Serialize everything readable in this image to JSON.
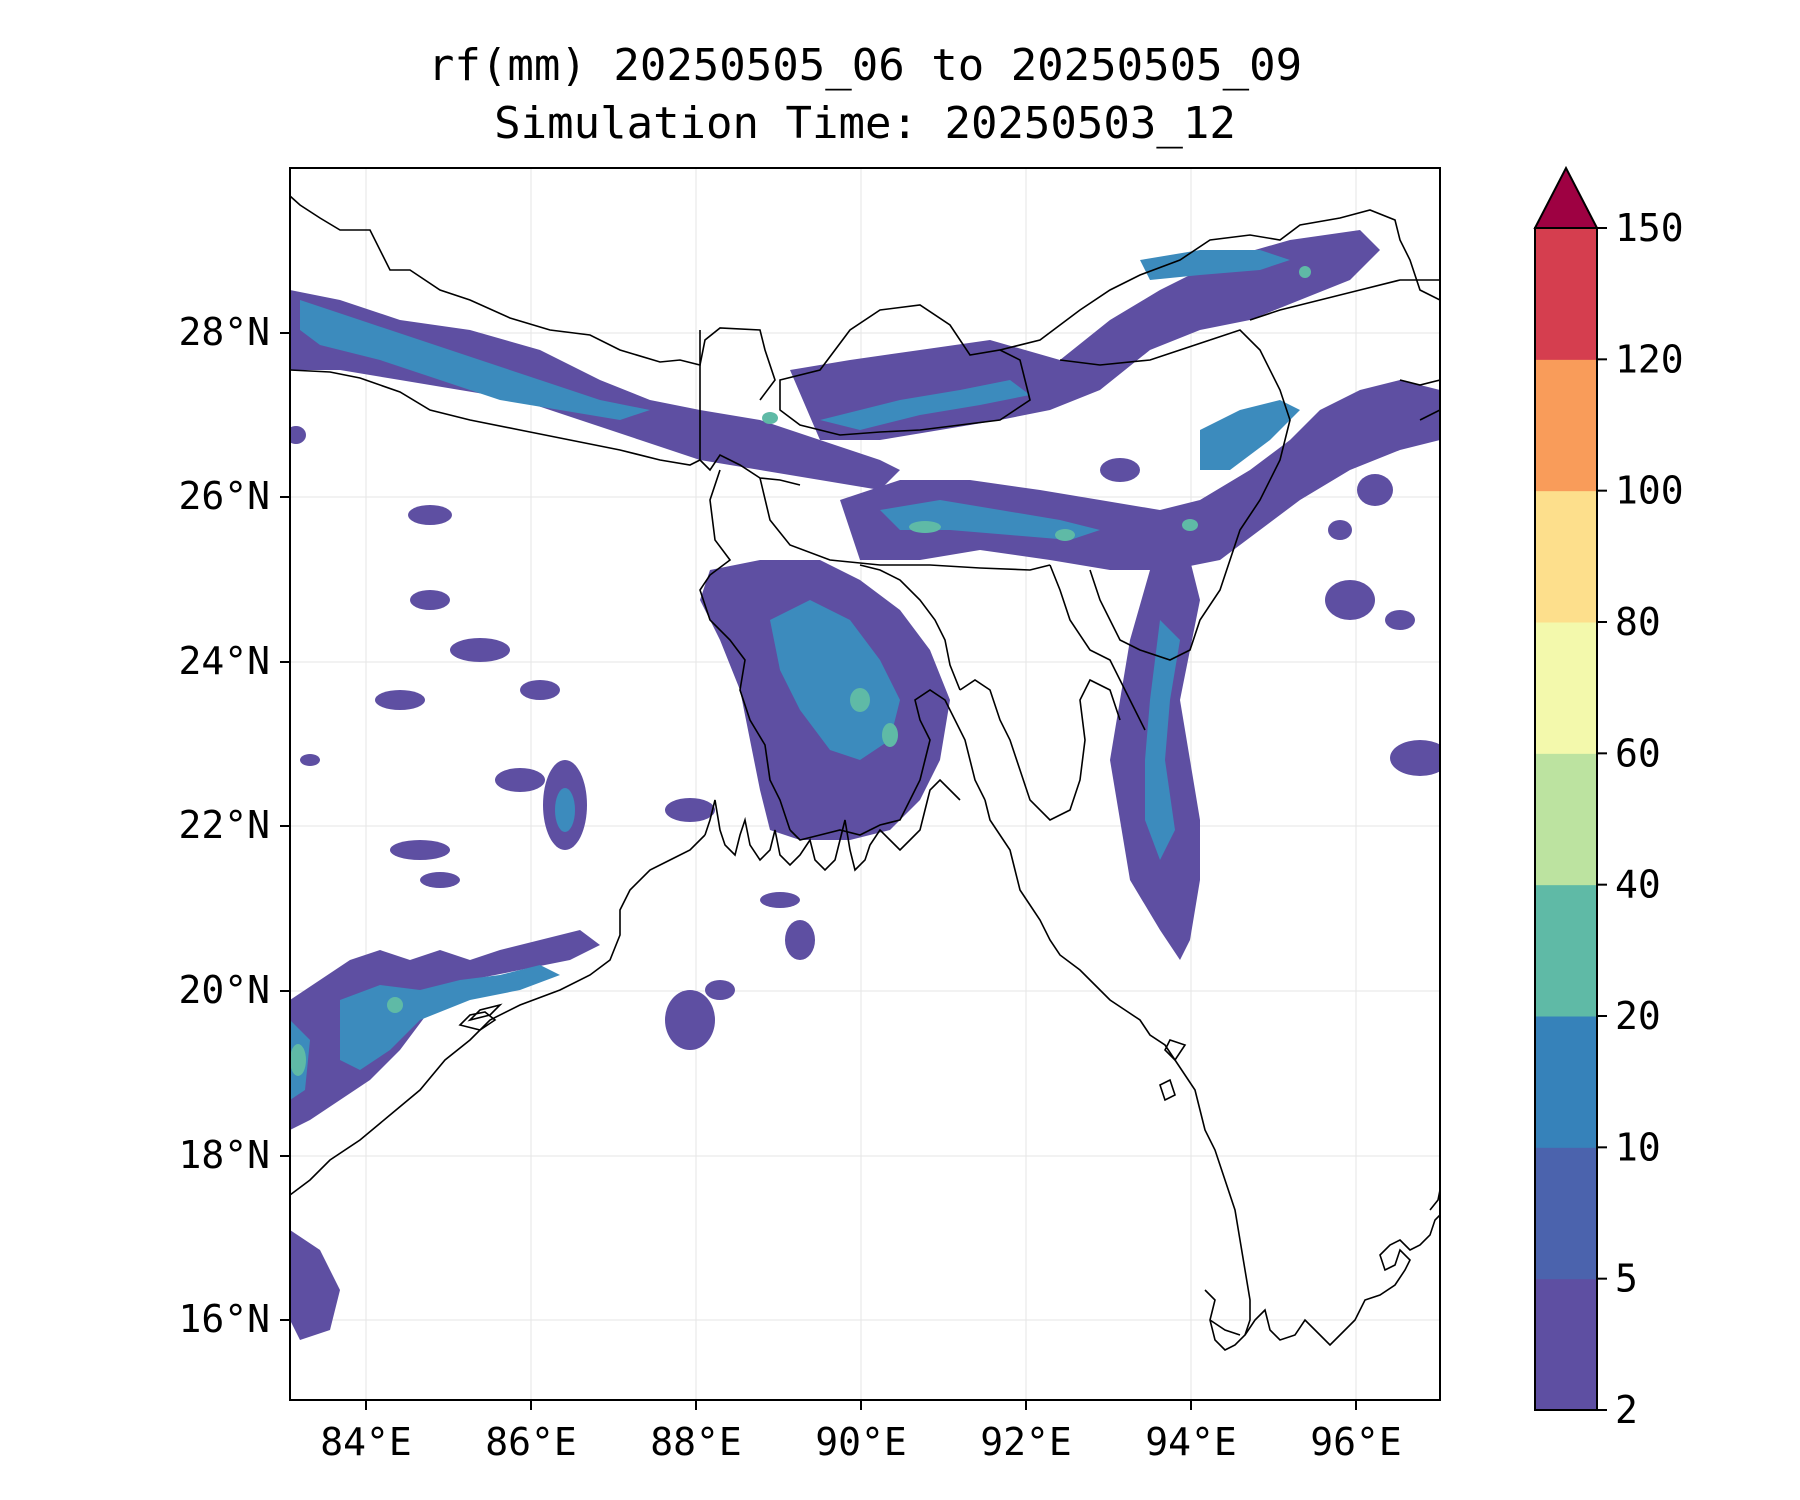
{
  "title": {
    "line1": "rf(mm) 20250505_06 to 20250505_09",
    "line2": "Simulation Time: 20250503_12"
  },
  "map": {
    "x_ticks": [
      "84°E",
      "86°E",
      "88°E",
      "90°E",
      "92°E",
      "94°E",
      "96°E"
    ],
    "y_ticks": [
      "28°N",
      "26°N",
      "24°N",
      "22°N",
      "20°N",
      "18°N",
      "16°N"
    ],
    "extent": {
      "lon": [
        83.1,
        97.0
      ],
      "lat": [
        15.0,
        30.0
      ]
    },
    "grid": true,
    "rain_colors": [
      "#5e4fa2",
      "#4b63ad",
      "#3c8bbd",
      "#5fbaa6",
      "#3c8bbd"
    ]
  },
  "colorbar": {
    "levels": [
      "2",
      "5",
      "10",
      "20",
      "40",
      "60",
      "80",
      "100",
      "120",
      "150"
    ],
    "colors": [
      "#5e4fa2",
      "#4b63ad",
      "#3682ba",
      "#5fbaa6",
      "#bce3a0",
      "#f3f9ac",
      "#fddf8c",
      "#f99c5a",
      "#d53e4f"
    ],
    "extend_color": "#9e0142"
  }
}
